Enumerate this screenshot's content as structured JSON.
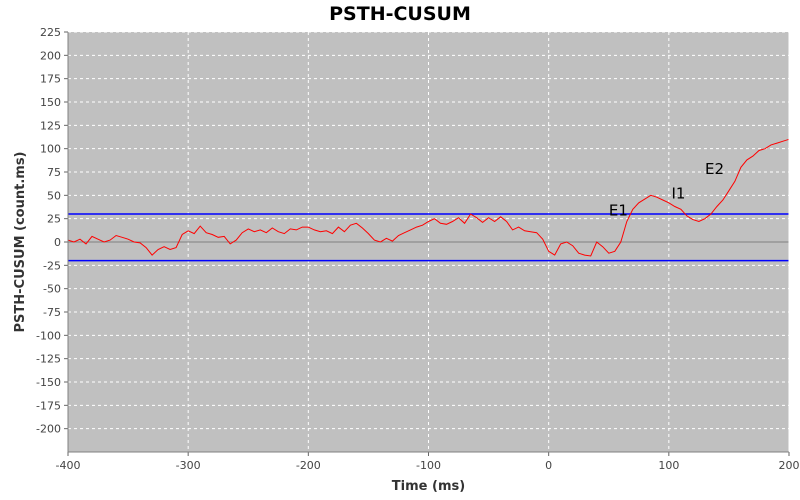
{
  "chart_data": {
    "type": "line",
    "title": "PSTH-CUSUM",
    "xlabel": "Time (ms)",
    "ylabel": "PSTH-CUSUM (count.ms)",
    "xlim": [
      -400,
      200
    ],
    "ylim": [
      -225,
      225
    ],
    "x_ticks": [
      -400,
      -300,
      -200,
      -100,
      0,
      100,
      200
    ],
    "x_tick_labels": [
      "-400",
      "-300",
      "-200",
      "-100",
      "0",
      "100",
      "200"
    ],
    "y_ticks": [
      225,
      200,
      175,
      150,
      125,
      100,
      75,
      50,
      25,
      0,
      -25,
      -50,
      -75,
      -100,
      -125,
      -150,
      -175,
      -200
    ],
    "y_tick_labels": [
      "225",
      "200",
      "175",
      "150",
      "125",
      "100",
      "75",
      "50",
      "25",
      "0",
      "-25",
      "-50",
      "-75",
      "-100",
      "-125",
      "-150",
      "-175",
      "-200"
    ],
    "grid": true,
    "series": [
      {
        "color": "#ff0000",
        "x": [
          -400,
          -395,
          -390,
          -385,
          -380,
          -375,
          -370,
          -365,
          -360,
          -355,
          -350,
          -345,
          -340,
          -335,
          -330,
          -325,
          -320,
          -315,
          -310,
          -305,
          -300,
          -295,
          -290,
          -285,
          -280,
          -275,
          -270,
          -265,
          -260,
          -255,
          -250,
          -245,
          -240,
          -235,
          -230,
          -225,
          -220,
          -215,
          -210,
          -205,
          -200,
          -195,
          -190,
          -185,
          -180,
          -175,
          -170,
          -165,
          -160,
          -155,
          -150,
          -145,
          -140,
          -135,
          -130,
          -125,
          -120,
          -115,
          -110,
          -105,
          -100,
          -95,
          -90,
          -85,
          -80,
          -75,
          -70,
          -65,
          -60,
          -55,
          -50,
          -45,
          -40,
          -35,
          -30,
          -25,
          -20,
          -15,
          -10,
          -5,
          0,
          5,
          10,
          15,
          20,
          25,
          30,
          35,
          40,
          45,
          50,
          55,
          60,
          65,
          70,
          75,
          80,
          85,
          90,
          95,
          100,
          105,
          110,
          115,
          120,
          125,
          130,
          135,
          140,
          145,
          150,
          155,
          160,
          165,
          170,
          175,
          180,
          185,
          190,
          195,
          200
        ],
        "y": [
          2,
          0,
          3,
          -2,
          6,
          3,
          0,
          2,
          7,
          5,
          3,
          0,
          -1,
          -6,
          -14,
          -8,
          -5,
          -8,
          -6,
          8,
          12,
          9,
          17,
          10,
          8,
          5,
          6,
          -2,
          2,
          10,
          14,
          11,
          13,
          10,
          15,
          11,
          9,
          14,
          13,
          16,
          16,
          13,
          11,
          12,
          9,
          16,
          11,
          18,
          20,
          15,
          9,
          2,
          0,
          4,
          1,
          7,
          10,
          13,
          16,
          18,
          22,
          25,
          20,
          19,
          22,
          26,
          20,
          30,
          26,
          21,
          26,
          22,
          27,
          22,
          13,
          16,
          12,
          11,
          10,
          3,
          -10,
          -14,
          -2,
          0,
          -4,
          -12,
          -14,
          -15,
          0,
          -5,
          -12,
          -10,
          0,
          22,
          35,
          42,
          46,
          50,
          48,
          45,
          42,
          38,
          35,
          28,
          24,
          22,
          25,
          30,
          38,
          45,
          55,
          65,
          80,
          88,
          92,
          98,
          100,
          104,
          106,
          108,
          110
        ]
      }
    ],
    "hlines": [
      {
        "y": 30,
        "color": "#0000ff"
      },
      {
        "y": -20,
        "color": "#0000ff"
      }
    ],
    "annotations": [
      {
        "text": "E1",
        "x": 58,
        "y": 34
      },
      {
        "text": "I1",
        "x": 108,
        "y": 52
      },
      {
        "text": "E2",
        "x": 138,
        "y": 78
      }
    ],
    "colors": {
      "plot_background": "#c0c0c0",
      "grid": "#ffffff",
      "series": "#ff0000",
      "threshold": "#0000ff"
    }
  }
}
